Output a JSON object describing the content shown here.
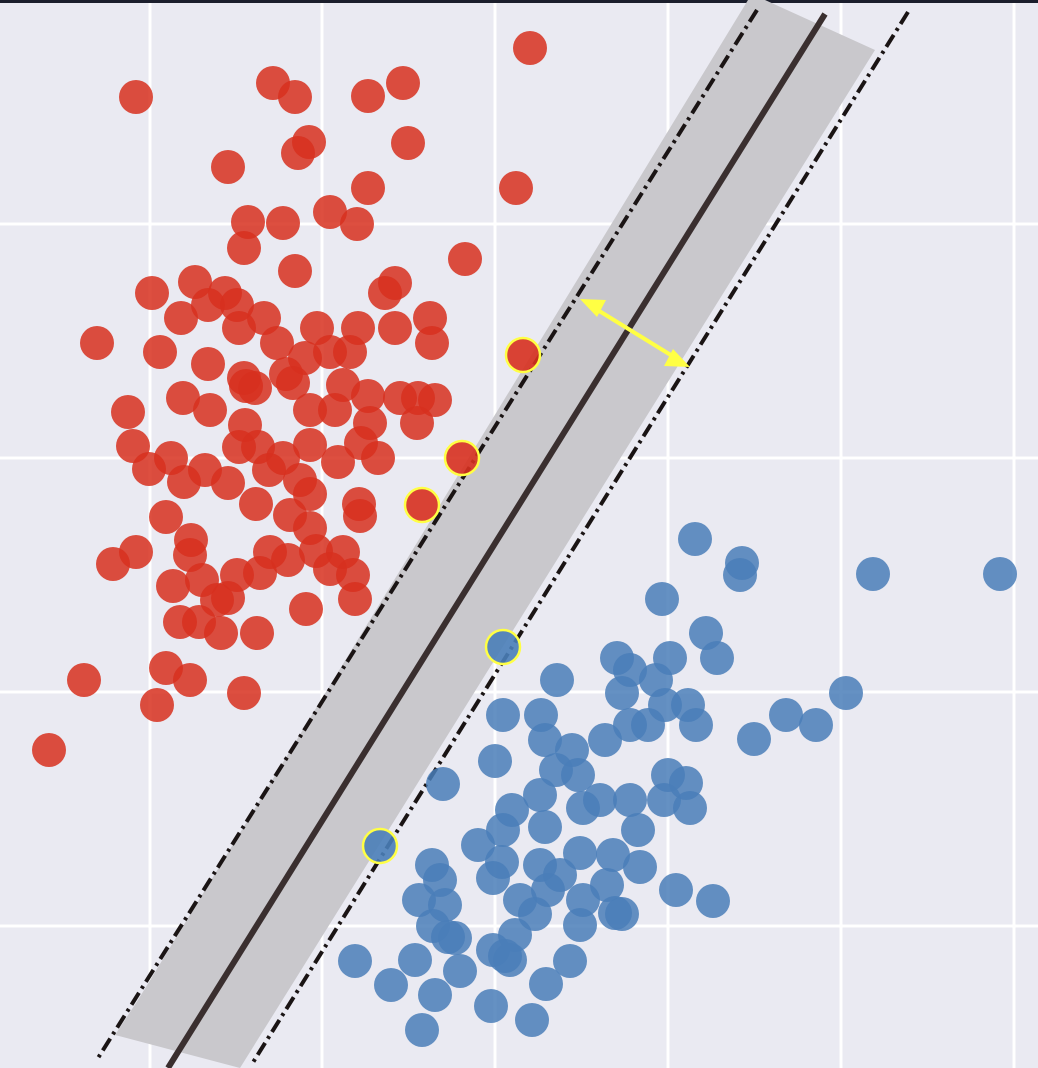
{
  "chart_data": {
    "type": "scatter",
    "xlim": [
      0,
      1038
    ],
    "ylim": [
      1068,
      0
    ],
    "xticks": [
      150,
      322,
      495,
      668,
      841,
      1014
    ],
    "yticks": [
      224,
      458,
      692,
      926
    ],
    "grid": true,
    "series": [
      {
        "color": "#d7301f",
        "x": [
          530,
          136,
          273,
          295,
          368,
          403,
          408,
          309,
          298,
          228,
          368,
          516,
          330,
          357,
          248,
          283,
          244,
          295,
          465,
          395,
          385,
          152,
          195,
          225,
          181,
          208,
          237,
          264,
          239,
          97,
          160,
          277,
          317,
          358,
          395,
          430,
          432,
          330,
          305,
          350,
          208,
          244,
          286,
          255,
          183,
          210,
          246,
          293,
          310,
          343,
          368,
          400,
          435,
          418,
          128,
          245,
          335,
          370,
          417,
          133,
          171,
          149,
          184,
          205,
          228,
          258,
          239,
          283,
          310,
          338,
          361,
          378,
          269,
          300,
          310,
          256,
          290,
          359,
          360,
          166,
          136,
          113,
          191,
          190,
          173,
          202,
          237,
          228,
          270,
          288,
          316,
          343,
          330,
          353,
          355,
          306,
          257,
          180,
          221,
          199,
          166,
          190,
          84,
          157,
          244,
          49,
          310,
          260,
          217
        ],
        "values": [
          48,
          97,
          83,
          97,
          96,
          83,
          143,
          142,
          153,
          167,
          188,
          188,
          212,
          224,
          222,
          223,
          248,
          271,
          259,
          283,
          293,
          293,
          282,
          293,
          318,
          305,
          305,
          318,
          328,
          343,
          352,
          343,
          328,
          328,
          328,
          318,
          343,
          352,
          358,
          352,
          364,
          378,
          374,
          388,
          398,
          410,
          386,
          383,
          410,
          385,
          396,
          398,
          400,
          398,
          412,
          425,
          410,
          423,
          423,
          446,
          458,
          469,
          482,
          470,
          483,
          447,
          447,
          458,
          445,
          462,
          443,
          458,
          470,
          480,
          494,
          504,
          515,
          504,
          516,
          517,
          552,
          564,
          540,
          555,
          586,
          580,
          575,
          598,
          552,
          560,
          551,
          552,
          569,
          575,
          599,
          609,
          633,
          622,
          633,
          622,
          668,
          680,
          680,
          705,
          693,
          750,
          528,
          573,
          600
        ]
      },
      {
        "color": "#4a7eb8",
        "x": [
          695,
          742,
          740,
          873,
          1000,
          662,
          706,
          617,
          670,
          717,
          630,
          656,
          557,
          622,
          665,
          688,
          846,
          503,
          541,
          786,
          816,
          696,
          630,
          648,
          605,
          754,
          545,
          572,
          495,
          556,
          578,
          443,
          668,
          686,
          540,
          512,
          583,
          600,
          630,
          664,
          690,
          545,
          503,
          638,
          478,
          580,
          613,
          640,
          432,
          502,
          540,
          560,
          607,
          676,
          713,
          440,
          419,
          493,
          520,
          548,
          583,
          622,
          535,
          445,
          433,
          455,
          580,
          515,
          493,
          510,
          415,
          355,
          570,
          460,
          391,
          546,
          435,
          491,
          532,
          422,
          448,
          615,
          505
        ],
        "values": [
          539,
          563,
          575,
          574,
          574,
          599,
          633,
          658,
          658,
          658,
          670,
          680,
          680,
          693,
          705,
          705,
          693,
          715,
          715,
          715,
          725,
          725,
          725,
          725,
          740,
          739,
          740,
          750,
          761,
          770,
          775,
          784,
          775,
          783,
          795,
          810,
          808,
          800,
          800,
          800,
          808,
          827,
          830,
          830,
          845,
          853,
          855,
          867,
          865,
          862,
          865,
          875,
          885,
          890,
          901,
          880,
          900,
          878,
          900,
          890,
          900,
          914,
          914,
          905,
          926,
          938,
          925,
          935,
          950,
          960,
          960,
          961,
          961,
          971,
          985,
          984,
          995,
          1006,
          1020,
          1030,
          937,
          913,
          956
        ]
      },
      {
        "color": "#d7301f",
        "edgecolor": "#ffff44",
        "x": [
          523,
          462,
          422
        ],
        "values": [
          355,
          458,
          505
        ]
      },
      {
        "color": "#4a7eb8",
        "edgecolor": "#ffff44",
        "x": [
          503,
          380
        ],
        "values": [
          647,
          846
        ]
      }
    ]
  }
}
